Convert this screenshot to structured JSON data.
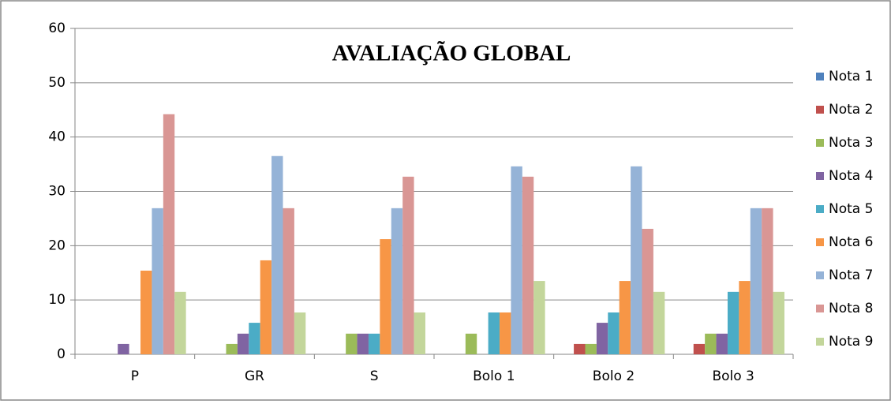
{
  "chart_data": {
    "type": "bar",
    "title": "AVALIAÇÃO GLOBAL",
    "categories": [
      "P",
      "GR",
      "S",
      "Bolo 1",
      "Bolo 2",
      "Bolo 3"
    ],
    "series": [
      {
        "name": "Nota 1",
        "color": "#4f81bd",
        "values": [
          0,
          0,
          0,
          0,
          0,
          0
        ]
      },
      {
        "name": "Nota 2",
        "color": "#c0504d",
        "values": [
          0,
          0,
          0,
          0,
          1.9,
          1.9
        ]
      },
      {
        "name": "Nota 3",
        "color": "#9bbb59",
        "values": [
          0,
          1.9,
          3.8,
          3.8,
          1.9,
          3.8
        ]
      },
      {
        "name": "Nota 4",
        "color": "#8064a2",
        "values": [
          1.9,
          3.8,
          3.8,
          0,
          5.8,
          3.8
        ]
      },
      {
        "name": "Nota 5",
        "color": "#4bacc6",
        "values": [
          0,
          5.8,
          3.8,
          7.7,
          7.7,
          11.5
        ]
      },
      {
        "name": "Nota 6",
        "color": "#f79646",
        "values": [
          15.4,
          17.3,
          21.2,
          7.7,
          13.5,
          13.5
        ]
      },
      {
        "name": "Nota 7",
        "color": "#95b3d7",
        "values": [
          26.9,
          36.5,
          26.9,
          34.6,
          34.6,
          26.9
        ]
      },
      {
        "name": "Nota 8",
        "color": "#d99694",
        "values": [
          44.2,
          26.9,
          32.7,
          32.7,
          23.1,
          26.9
        ]
      },
      {
        "name": "Nota 9",
        "color": "#c3d69b",
        "values": [
          11.5,
          7.7,
          7.7,
          13.5,
          11.5,
          11.5
        ]
      }
    ],
    "ylim": [
      0,
      60
    ],
    "yticks": [
      0,
      10,
      20,
      30,
      40,
      50,
      60
    ],
    "grid": true,
    "legend": "right"
  }
}
